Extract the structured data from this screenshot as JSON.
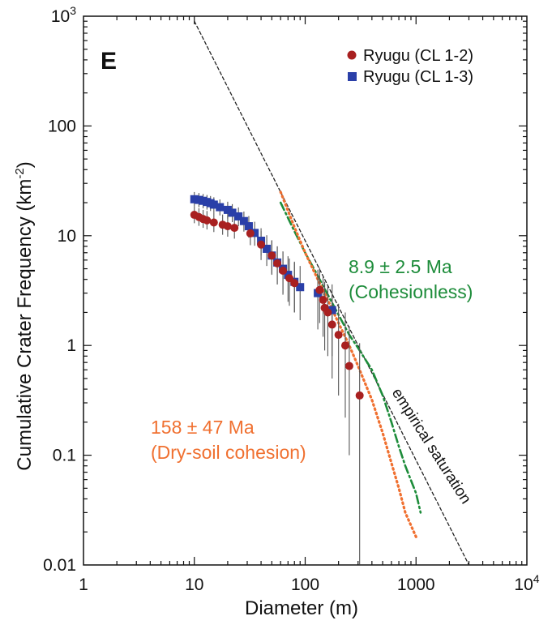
{
  "chart_data": {
    "type": "scatter",
    "panel_label": "E",
    "xlabel": "Diameter (m)",
    "ylabel_main": "Cumulative Crater Frequency (km",
    "ylabel_exp": "-2",
    "ylabel_close": ")",
    "xscale": "log",
    "yscale": "log",
    "xlim": [
      1,
      10000
    ],
    "ylim": [
      0.01,
      1000
    ],
    "x_ticks": [
      {
        "value": 1,
        "base": "1",
        "exp": ""
      },
      {
        "value": 10,
        "base": "10",
        "exp": ""
      },
      {
        "value": 100,
        "base": "100",
        "exp": ""
      },
      {
        "value": 1000,
        "base": "1000",
        "exp": ""
      },
      {
        "value": 10000,
        "base": "10",
        "exp": "4"
      }
    ],
    "y_ticks": [
      {
        "value": 0.01,
        "base": "0.01",
        "exp": ""
      },
      {
        "value": 0.1,
        "base": "0.1",
        "exp": ""
      },
      {
        "value": 1,
        "base": "1",
        "exp": ""
      },
      {
        "value": 10,
        "base": "10",
        "exp": ""
      },
      {
        "value": 100,
        "base": "100",
        "exp": ""
      },
      {
        "value": 1000,
        "base": "10",
        "exp": "3"
      }
    ],
    "legend": [
      {
        "label": "Ryugu (CL 1-2)",
        "color": "#a82020",
        "marker": "circle"
      },
      {
        "label": "Ryugu (CL 1-3)",
        "color": "#2a3fa8",
        "marker": "square"
      }
    ],
    "series": [
      {
        "name": "Ryugu (CL 1-3)",
        "color": "#2a3fa8",
        "marker": "square",
        "points": [
          {
            "x": 10,
            "y": 21.5,
            "err_lo": 18.5,
            "err_hi": 25
          },
          {
            "x": 11,
            "y": 21.2,
            "err_lo": 18.2,
            "err_hi": 24.5
          },
          {
            "x": 12,
            "y": 20.8,
            "err_lo": 17.8,
            "err_hi": 24
          },
          {
            "x": 13,
            "y": 20.3,
            "err_lo": 17.3,
            "err_hi": 23.5
          },
          {
            "x": 14,
            "y": 19.8,
            "err_lo": 16.8,
            "err_hi": 23
          },
          {
            "x": 15,
            "y": 19.2,
            "err_lo": 16.2,
            "err_hi": 22.4
          },
          {
            "x": 17,
            "y": 18.2,
            "err_lo": 15.3,
            "err_hi": 21.4
          },
          {
            "x": 20,
            "y": 17.2,
            "err_lo": 14.3,
            "err_hi": 20.4
          },
          {
            "x": 22,
            "y": 16.2,
            "err_lo": 13.3,
            "err_hi": 19.4
          },
          {
            "x": 25,
            "y": 15.0,
            "err_lo": 12.2,
            "err_hi": 18.1
          },
          {
            "x": 28,
            "y": 13.6,
            "err_lo": 10.9,
            "err_hi": 16.6
          },
          {
            "x": 31,
            "y": 12.2,
            "err_lo": 9.6,
            "err_hi": 15.1
          },
          {
            "x": 35,
            "y": 10.6,
            "err_lo": 8.1,
            "err_hi": 13.4
          },
          {
            "x": 40,
            "y": 9.0,
            "err_lo": 6.6,
            "err_hi": 11.7
          },
          {
            "x": 45,
            "y": 7.6,
            "err_lo": 5.3,
            "err_hi": 10.1
          },
          {
            "x": 50,
            "y": 6.6,
            "err_lo": 4.4,
            "err_hi": 9.0
          },
          {
            "x": 56,
            "y": 5.7,
            "err_lo": 3.6,
            "err_hi": 8.0
          },
          {
            "x": 63,
            "y": 5.0,
            "err_lo": 3.0,
            "err_hi": 7.2
          },
          {
            "x": 70,
            "y": 4.4,
            "err_lo": 2.5,
            "err_hi": 6.5
          },
          {
            "x": 80,
            "y": 3.8,
            "err_lo": 2.0,
            "err_hi": 5.8
          },
          {
            "x": 90,
            "y": 3.4,
            "err_lo": 1.7,
            "err_hi": 5.3
          },
          {
            "x": 130,
            "y": 3.0,
            "err_lo": 1.4,
            "err_hi": 4.9
          },
          {
            "x": 175,
            "y": 2.1,
            "err_lo": 0.8,
            "err_hi": 3.6
          }
        ]
      },
      {
        "name": "Ryugu (CL 1-2)",
        "color": "#a82020",
        "marker": "circle",
        "points": [
          {
            "x": 10,
            "y": 15.5,
            "err_lo": 13,
            "err_hi": 18.5
          },
          {
            "x": 11,
            "y": 14.8,
            "err_lo": 12.3,
            "err_hi": 17.8
          },
          {
            "x": 12,
            "y": 14.2,
            "err_lo": 11.8,
            "err_hi": 17.2
          },
          {
            "x": 13,
            "y": 13.8,
            "err_lo": 11.4,
            "err_hi": 16.8
          },
          {
            "x": 15,
            "y": 13.2,
            "err_lo": 10.8,
            "err_hi": 16.2
          },
          {
            "x": 18,
            "y": 12.6,
            "err_lo": 10.2,
            "err_hi": 15.6
          },
          {
            "x": 20,
            "y": 12.2,
            "err_lo": 9.8,
            "err_hi": 15.2
          },
          {
            "x": 23,
            "y": 11.8,
            "err_lo": 9.4,
            "err_hi": 14.8
          },
          {
            "x": 32,
            "y": 10.5,
            "err_lo": 8.2,
            "err_hi": 13.3
          },
          {
            "x": 40,
            "y": 8.3,
            "err_lo": 6.0,
            "err_hi": 11.0
          },
          {
            "x": 50,
            "y": 6.6,
            "err_lo": 4.5,
            "err_hi": 9.1
          },
          {
            "x": 56,
            "y": 5.6,
            "err_lo": 3.6,
            "err_hi": 8.0
          },
          {
            "x": 63,
            "y": 4.8,
            "err_lo": 2.9,
            "err_hi": 7.1
          },
          {
            "x": 72,
            "y": 4.1,
            "err_lo": 2.3,
            "err_hi": 6.2
          },
          {
            "x": 80,
            "y": 3.7,
            "err_lo": 2.0,
            "err_hi": 5.7
          },
          {
            "x": 135,
            "y": 3.2,
            "err_lo": 1.6,
            "err_hi": 5.1
          },
          {
            "x": 145,
            "y": 2.6,
            "err_lo": 1.2,
            "err_hi": 4.3
          },
          {
            "x": 150,
            "y": 2.2,
            "err_lo": 0.9,
            "err_hi": 3.8
          },
          {
            "x": 160,
            "y": 2.0,
            "err_lo": 0.8,
            "err_hi": 3.5
          },
          {
            "x": 175,
            "y": 1.55,
            "err_lo": 0.5,
            "err_hi": 2.9
          },
          {
            "x": 200,
            "y": 1.25,
            "err_lo": 0.35,
            "err_hi": 2.4
          },
          {
            "x": 230,
            "y": 1.0,
            "err_lo": 0.22,
            "err_hi": 2.0
          },
          {
            "x": 250,
            "y": 0.65,
            "err_lo": 0.1,
            "err_hi": 1.5
          },
          {
            "x": 310,
            "y": 0.35,
            "err_lo": 0.0101,
            "err_hi": 1.05
          }
        ]
      }
    ],
    "lines": [
      {
        "name": "empirical saturation",
        "label": "empirical saturation",
        "color": "#222222",
        "style": "dashed",
        "x": [
          10,
          3000
        ],
        "y": [
          900,
          0.01
        ]
      },
      {
        "name": "cohesionless isochron",
        "label_line1": "8.9 ± 2.5 Ma",
        "label_line2": "(Cohesionless)",
        "color": "#1d8c3a",
        "style": "dashdot",
        "x": [
          60,
          80,
          100,
          130,
          160,
          200,
          250,
          300,
          400,
          500,
          600,
          700,
          800,
          1000,
          1100
        ],
        "y": [
          20,
          11,
          7.0,
          4.3,
          2.9,
          1.9,
          1.25,
          0.95,
          0.6,
          0.35,
          0.2,
          0.12,
          0.08,
          0.045,
          0.03
        ]
      },
      {
        "name": "dry-soil cohesion isochron",
        "label_line1": "158 ± 47 Ma",
        "label_line2": "(Dry-soil cohesion)",
        "color": "#f07030",
        "style": "dotted",
        "x": [
          60,
          80,
          100,
          130,
          160,
          200,
          250,
          300,
          400,
          500,
          600,
          700,
          800,
          1000
        ],
        "y": [
          25,
          12,
          7.0,
          4.0,
          2.6,
          1.6,
          1.0,
          0.65,
          0.32,
          0.16,
          0.085,
          0.05,
          0.03,
          0.018
        ]
      }
    ]
  }
}
